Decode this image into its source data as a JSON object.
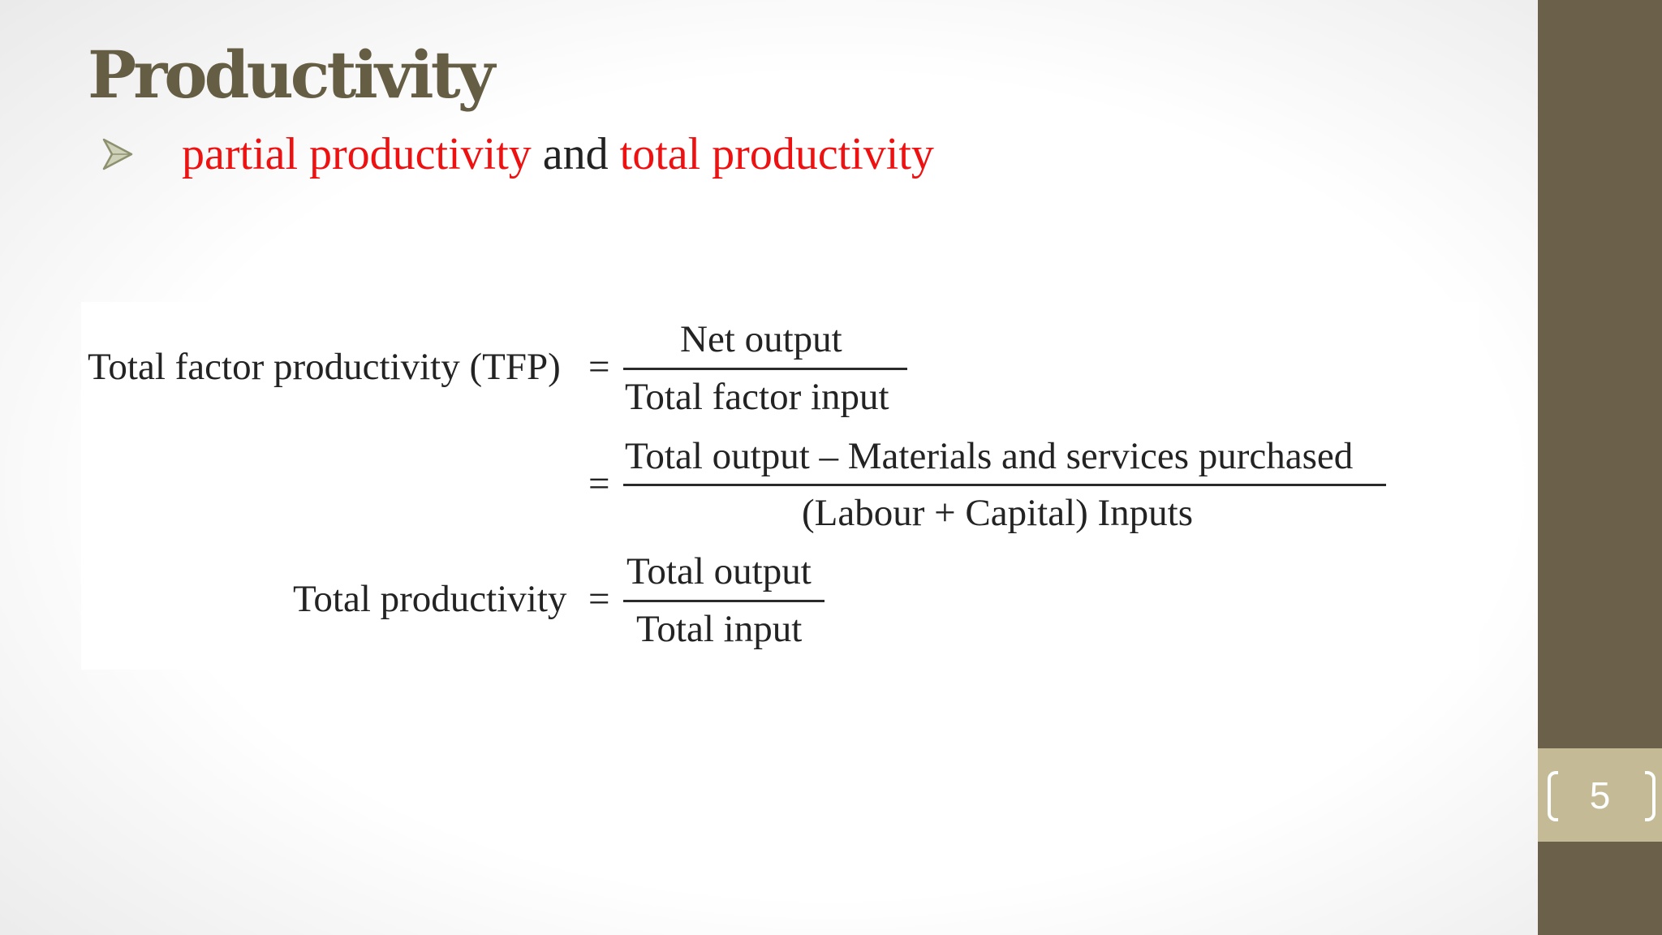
{
  "slide": {
    "title": "Productivity",
    "bullet": {
      "icon": "arrowhead-bullet-icon",
      "part1": "partial productivity",
      "part2": " and ",
      "part3": "total productivity"
    },
    "page_number": "5"
  },
  "formulas": {
    "tfp_label": "Total factor productivity (TFP)",
    "equals": "=",
    "tfp_numerator": "Net output",
    "tfp_denominator": "Total factor input",
    "tfp2_numerator": "Total output – Materials and services purchased",
    "tfp2_denominator": "(Labour + Capital) Inputs",
    "tp_label": "Total productivity",
    "tp_numerator": "Total output",
    "tp_denominator": "Total input"
  },
  "colors": {
    "title": "#665e44",
    "emphasis_red": "#ee1111",
    "sidebar": "#6b6049",
    "page_badge": "#c4bb96"
  }
}
